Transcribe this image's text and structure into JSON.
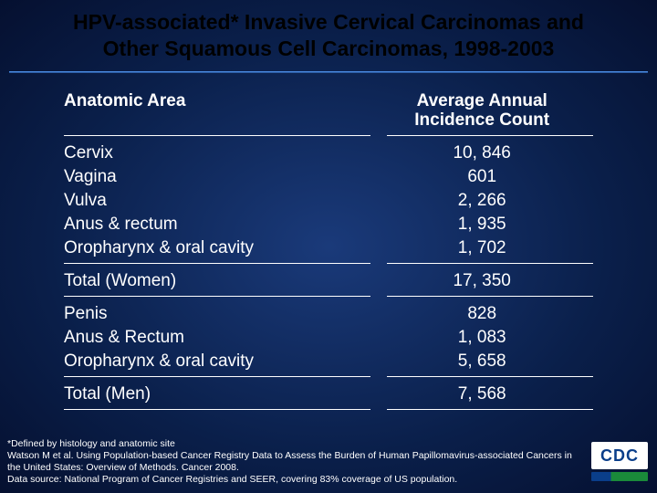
{
  "title_line1": "HPV-associated* Invasive Cervical Carcinomas and",
  "title_line2": "Other Squamous Cell Carcinomas, 1998-2003",
  "header": {
    "left": "Anatomic Area",
    "right_l1": "Average Annual",
    "right_l2": "Incidence Count"
  },
  "women_rows": [
    {
      "area": "Cervix",
      "count": "10, 846"
    },
    {
      "area": "Vagina",
      "count": "601"
    },
    {
      "area": "Vulva",
      "count": "2, 266"
    },
    {
      "area": "Anus & rectum",
      "count": "1, 935"
    },
    {
      "area": "Oropharynx & oral cavity",
      "count": "1, 702"
    }
  ],
  "total_women": {
    "area": "Total (Women)",
    "count": "17, 350"
  },
  "men_rows": [
    {
      "area": "Penis",
      "count": "828"
    },
    {
      "area": "Anus & Rectum",
      "count": "1, 083"
    },
    {
      "area": "Oropharynx & oral cavity",
      "count": "5, 658"
    }
  ],
  "total_men": {
    "area": "Total (Men)",
    "count": "7, 568"
  },
  "footnote1": "*Defined by histology and anatomic site",
  "footnote2": "Watson M et al. Using Population-based Cancer Registry Data to Assess the Burden of Human Papillomavirus-associated Cancers in the United States: Overview of Methods. Cancer 2008.",
  "footnote3": "Data source: National Program of Cancer Registries and SEER, covering 83% coverage of US population.",
  "logo_text": "CDC"
}
